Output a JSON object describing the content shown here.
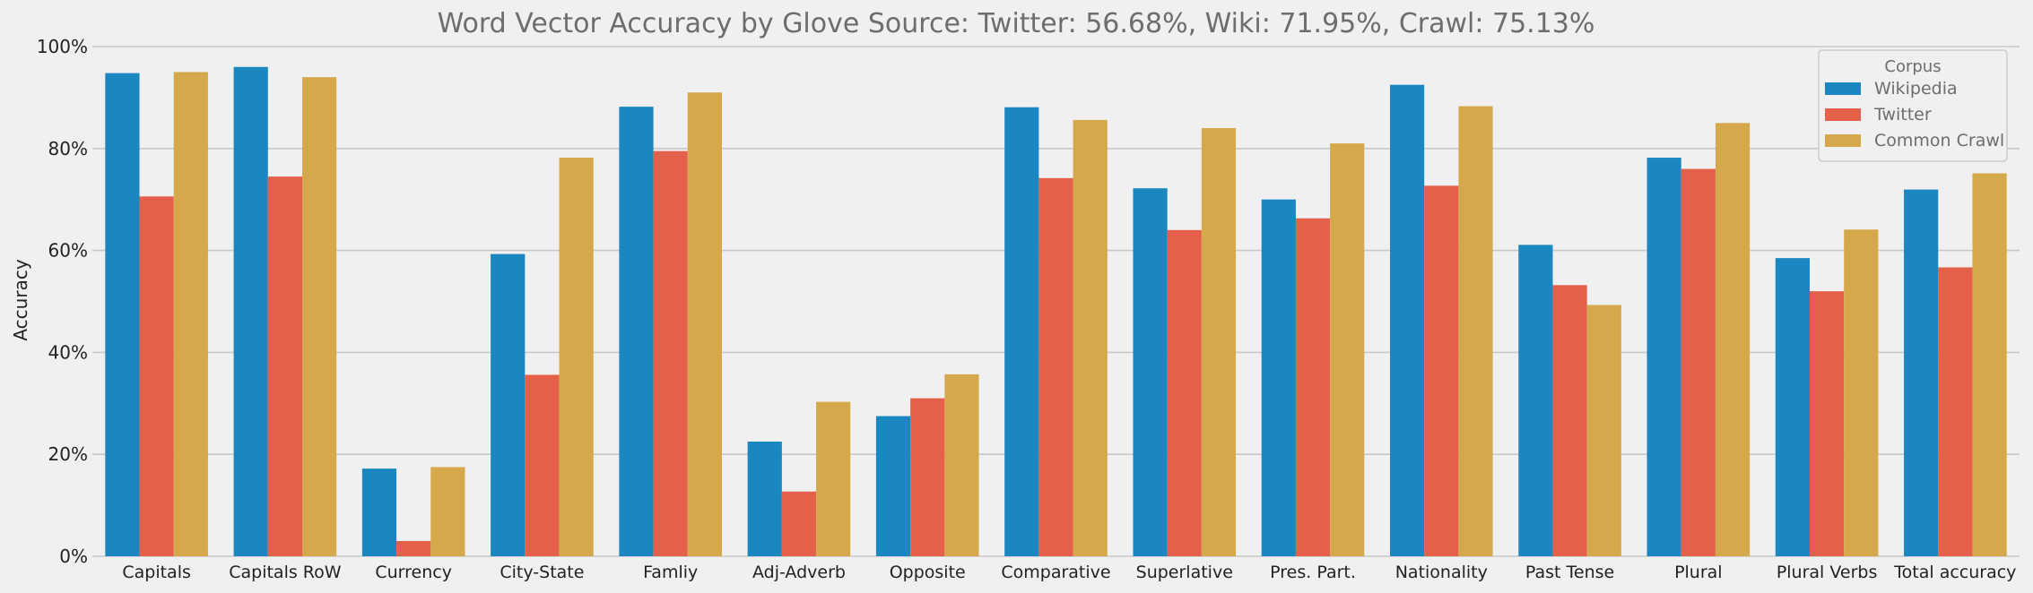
{
  "chart_data": {
    "type": "bar",
    "title": "Word Vector Accuracy by Glove Source: Twitter: 56.68%, Wiki: 71.95%, Crawl: 75.13%",
    "xlabel": "",
    "ylabel": "Accuracy",
    "ylim": [
      0,
      1
    ],
    "yticks": [
      "0%",
      "20%",
      "40%",
      "60%",
      "80%",
      "100%"
    ],
    "grid": true,
    "legend": {
      "title": "Corpus",
      "placement": "top-right"
    },
    "categories": [
      "Capitals",
      "Capitals RoW",
      "Currency",
      "City-State",
      "Famliy",
      "Adj-Adverb",
      "Opposite",
      "Comparative",
      "Superlative",
      "Pres. Part.",
      "Nationality",
      "Past Tense",
      "Plural",
      "Plural Verbs",
      "Total accuracy"
    ],
    "series": [
      {
        "name": "Wikipedia",
        "color": "#1b87c0",
        "values": [
          0.948,
          0.96,
          0.172,
          0.593,
          0.882,
          0.225,
          0.275,
          0.881,
          0.722,
          0.7,
          0.925,
          0.611,
          0.782,
          0.585,
          0.7195
        ]
      },
      {
        "name": "Twitter",
        "color": "#e5604a",
        "values": [
          0.706,
          0.745,
          0.03,
          0.356,
          0.795,
          0.127,
          0.31,
          0.742,
          0.64,
          0.663,
          0.727,
          0.532,
          0.76,
          0.52,
          0.5668
        ]
      },
      {
        "name": "Common Crawl",
        "color": "#d4a84b",
        "values": [
          0.95,
          0.94,
          0.175,
          0.782,
          0.91,
          0.303,
          0.357,
          0.856,
          0.84,
          0.81,
          0.883,
          0.493,
          0.85,
          0.641,
          0.7513
        ]
      }
    ]
  }
}
